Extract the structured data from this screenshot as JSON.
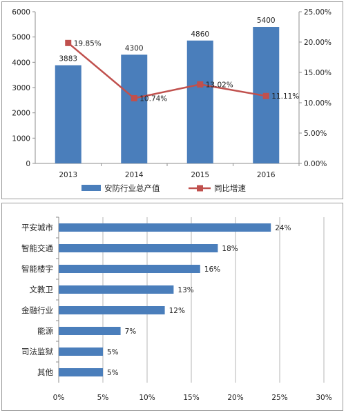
{
  "chart_data": [
    {
      "type": "bar",
      "categories": [
        "2013",
        "2014",
        "2015",
        "2016"
      ],
      "series": [
        {
          "name": "安防行业总产值",
          "type": "bar",
          "axis": "left",
          "values": [
            3883,
            4300,
            4860,
            5400
          ],
          "labels": [
            "3883",
            "4300",
            "4860",
            "5400"
          ],
          "color": "#4a7ebb"
        },
        {
          "name": "同比增速",
          "type": "line",
          "axis": "right",
          "values": [
            19.85,
            10.74,
            13.02,
            11.11
          ],
          "labels": [
            "19.85%",
            "10.74%",
            "13.02%",
            "11.11%"
          ],
          "color": "#c0504d"
        }
      ],
      "y_left": {
        "ylim": [
          0,
          6000
        ],
        "ticks": [
          "0",
          "1000",
          "2000",
          "3000",
          "4000",
          "5000",
          "6000"
        ]
      },
      "y_right": {
        "ylim": [
          0,
          25
        ],
        "ticks": [
          "0.00%",
          "5.00%",
          "10.00%",
          "15.00%",
          "20.00%",
          "25.00%"
        ]
      },
      "grid": false,
      "legend_position": "bottom"
    },
    {
      "type": "bar",
      "orientation": "horizontal",
      "categories": [
        "平安城市",
        "智能交通",
        "智能楼宇",
        "文教卫",
        "金融行业",
        "能源",
        "司法监狱",
        "其他"
      ],
      "values": [
        24,
        18,
        16,
        13,
        12,
        7,
        5,
        5
      ],
      "labels": [
        "24%",
        "18%",
        "16%",
        "13%",
        "12%",
        "7%",
        "5%",
        "5%"
      ],
      "color": "#4a7ebb",
      "xlim": [
        0,
        30
      ],
      "x_ticks": [
        "0%",
        "5%",
        "10%",
        "15%",
        "20%",
        "25%",
        "30%"
      ],
      "grid": "vertical"
    }
  ]
}
